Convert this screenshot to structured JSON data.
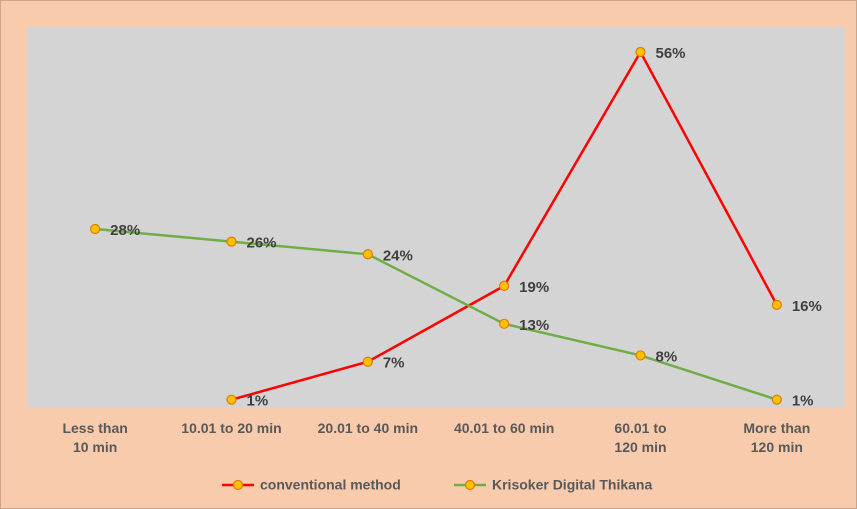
{
  "chart_data": {
    "type": "line",
    "categories": [
      "Less than\n10 min",
      "10.01 to 20 min",
      "20.01 to 40 min",
      "40.01 to 60 min",
      "60.01 to\n120 min",
      "More than\n120 min"
    ],
    "series": [
      {
        "name": "conventional method",
        "color": "#ff0000",
        "values": [
          null,
          1,
          7,
          19,
          56,
          16
        ],
        "value_labels": [
          null,
          "1%",
          "7%",
          "19%",
          "56%",
          "16%"
        ]
      },
      {
        "name": "Krisoker Digital Thikana",
        "color": "#70ad47",
        "values": [
          28,
          26,
          24,
          13,
          8,
          1
        ],
        "value_labels": [
          "28%",
          "26%",
          "24%",
          "13%",
          "8%",
          "1%"
        ]
      }
    ],
    "marker_color": "#ffc000",
    "legend": "bottom"
  }
}
